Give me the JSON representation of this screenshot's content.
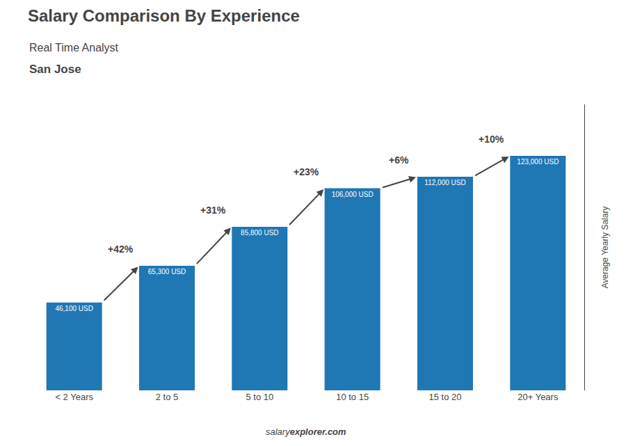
{
  "chart_data": {
    "type": "bar",
    "title": "Salary Comparison By Experience",
    "subtitle": [
      "Real Time Analyst",
      "San Jose"
    ],
    "credit": [
      "salary",
      "explorer.com"
    ],
    "ylabel": "Average Yearly Salary",
    "categories": [
      "< 2 Years",
      "2 to 5",
      "5 to 10",
      "10 to 15",
      "15 to 20",
      "20+ Years"
    ],
    "values": [
      46100,
      65300,
      85800,
      106000,
      112000,
      123000
    ],
    "value_labels": [
      "46,100 USD",
      "65,300 USD",
      "85,800 USD",
      "106,000 USD",
      "112,000 USD",
      "123,000 USD"
    ],
    "data_labels": true,
    "annotations": [
      "+42%",
      "+31%",
      "+23%",
      "+6%",
      "+10%"
    ],
    "ylim": [
      0,
      150000
    ],
    "tick_labels": "x",
    "grid": false
  }
}
